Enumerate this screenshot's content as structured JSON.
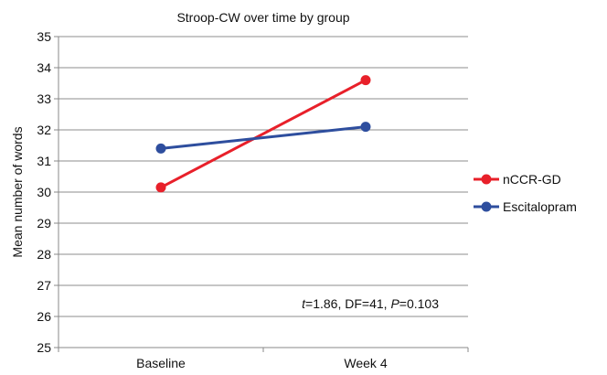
{
  "chart_data": {
    "type": "line",
    "title": "Stroop-CW over time by group",
    "xlabel": "",
    "ylabel": "Mean number of words",
    "categories": [
      "Baseline",
      "Week 4"
    ],
    "ylim": [
      25,
      35
    ],
    "yticks": [
      25,
      26,
      27,
      28,
      29,
      30,
      31,
      32,
      33,
      34,
      35
    ],
    "grid": true,
    "legend_position": "right",
    "series": [
      {
        "name": "nCCR-GD",
        "color": "#e8202a",
        "values": [
          30.15,
          33.6
        ]
      },
      {
        "name": "Escitalopram",
        "color": "#2e4e9e",
        "values": [
          31.4,
          32.1
        ]
      }
    ],
    "annotation": {
      "t_label": "t",
      "t_value": "=1.86, DF=41, ",
      "p_label": "P",
      "p_value": "=0.103"
    }
  }
}
